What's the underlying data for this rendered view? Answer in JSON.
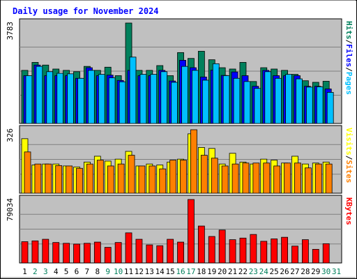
{
  "chart_data": {
    "type": "bar",
    "title": "Daily usage for November 2024",
    "categories": [
      "1",
      "2",
      "3",
      "4",
      "5",
      "6",
      "7",
      "8",
      "9",
      "10",
      "11",
      "12",
      "13",
      "14",
      "15",
      "16",
      "17",
      "18",
      "19",
      "20",
      "21",
      "22",
      "23",
      "24",
      "25",
      "26",
      "27",
      "28",
      "29",
      "30",
      "31"
    ],
    "weekend_days": [
      2,
      3,
      9,
      10,
      16,
      17,
      23,
      24,
      30,
      31
    ],
    "colors": {
      "hits": "#00805c",
      "files": "#0000ff",
      "pages": "#00c0ff",
      "visits": "#ffff00",
      "sites": "#ff8000",
      "kbytes": "#ff0000",
      "weekday_label": "#000000",
      "weekend_label": "#00805c",
      "title": "#0000ff",
      "panel_bg": "#c0c0c0"
    },
    "panels": [
      {
        "id": "requests",
        "max_label": "3783",
        "ylim": [
          0,
          3783
        ],
        "series": [
          {
            "name": "Hits",
            "key": "hits",
            "values": [
              2000,
              2300,
              2200,
              2050,
              2000,
              1950,
              2150,
              2000,
              2120,
              1800,
              3783,
              2000,
              2000,
              2180,
              1800,
              2670,
              2450,
              2720,
              2400,
              2100,
              2050,
              2300,
              1580,
              2100,
              2050,
              2000,
              1850,
              1610,
              1550,
              1590,
              0
            ]
          },
          {
            "name": "Files",
            "key": "files",
            "values": [
              1800,
              2200,
              1800,
              1800,
              1800,
              1700,
              2100,
              1800,
              1820,
              1620,
              2000,
              1800,
              1800,
              2000,
              1600,
              2380,
              2100,
              1750,
              2010,
              1810,
              1940,
              1800,
              1400,
              2000,
              1800,
              1800,
              1800,
              1400,
              1400,
              1300,
              0
            ]
          },
          {
            "name": "Pages",
            "key": "pages",
            "values": [
              1800,
              2150,
              1950,
              1890,
              1870,
              1700,
              2000,
              1850,
              1720,
              1570,
              2500,
              1850,
              1850,
              1950,
              1550,
              2150,
              2000,
              1630,
              2250,
              1800,
              1700,
              1580,
              1320,
              1950,
              1700,
              1850,
              1680,
              1370,
              1380,
              1170,
              0
            ]
          }
        ],
        "legend": [
          "Pages",
          "Files",
          "Hits"
        ]
      },
      {
        "id": "visitors",
        "max_label": "326",
        "ylim": [
          0,
          326
        ],
        "series": [
          {
            "name": "Visits",
            "key": "visits",
            "values": [
              280,
              145,
              150,
              150,
              140,
              135,
              160,
              190,
              165,
              175,
              215,
              140,
              150,
              145,
              160,
              175,
              305,
              235,
              230,
              150,
              205,
              160,
              150,
              175,
              170,
              155,
              190,
              150,
              155,
              160,
              0
            ]
          },
          {
            "name": "Sites",
            "key": "sites",
            "values": [
              212,
              150,
              150,
              142,
              140,
              128,
              150,
              170,
              140,
              150,
              195,
              140,
              140,
              125,
              170,
              170,
              326,
              195,
              180,
              140,
              150,
              155,
              155,
              155,
              140,
              155,
              155,
              130,
              150,
              150,
              0
            ]
          }
        ],
        "legend": [
          "Sites",
          "Visits"
        ]
      },
      {
        "id": "kbytes",
        "max_label": "79034",
        "ylim": [
          0,
          79034
        ],
        "series": [
          {
            "name": "KBytes",
            "key": "kbytes",
            "values": [
              26500,
              27500,
              29500,
              25500,
              24500,
              23500,
              24500,
              26000,
              19500,
              25500,
              37500,
              29500,
              22500,
              21500,
              29500,
              26000,
              79034,
              46000,
              33000,
              41000,
              29000,
              31000,
              35500,
              27000,
              30000,
              32000,
              21000,
              29000,
              17000,
              24000,
              0
            ]
          }
        ],
        "legend": [
          "KBytes"
        ]
      }
    ]
  }
}
